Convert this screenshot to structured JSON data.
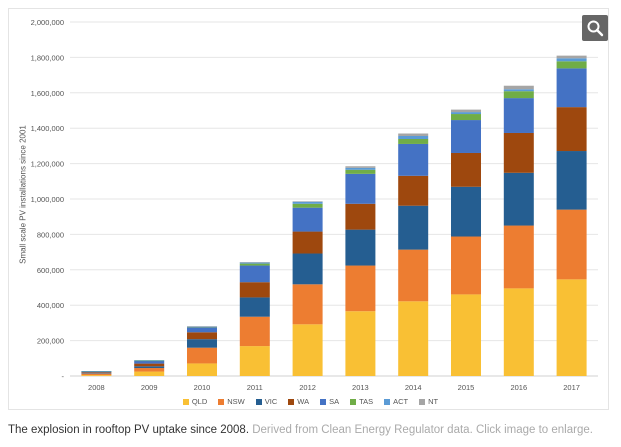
{
  "chart_data": {
    "type": "bar",
    "stacked": true,
    "title": "",
    "xlabel": "",
    "ylabel": "Small scale PV installations since 2001",
    "ylim": [
      0,
      2000000
    ],
    "yticks": [
      "-",
      "200,000",
      "400,000",
      "600,000",
      "800,000",
      "1,000,000",
      "1,200,000",
      "1,400,000",
      "1,600,000",
      "1,800,000",
      "2,000,000"
    ],
    "categories": [
      "2008",
      "2009",
      "2010",
      "2011",
      "2012",
      "2013",
      "2014",
      "2015",
      "2016",
      "2017"
    ],
    "series": [
      {
        "name": "QLD",
        "color": "#F9C034",
        "values": [
          5000,
          25000,
          71000,
          169000,
          292000,
          366000,
          422000,
          461000,
          495000,
          546000
        ]
      },
      {
        "name": "NSW",
        "color": "#ED7D31",
        "values": [
          8000,
          20000,
          89000,
          166000,
          226000,
          258000,
          292000,
          327000,
          355000,
          394000
        ]
      },
      {
        "name": "VIC",
        "color": "#255E91",
        "values": [
          3000,
          10000,
          48000,
          109000,
          174000,
          203000,
          248000,
          281000,
          298000,
          331000
        ]
      },
      {
        "name": "WA",
        "color": "#9E480E",
        "values": [
          5000,
          15000,
          39000,
          86000,
          124000,
          146000,
          169000,
          191000,
          225000,
          248000
        ]
      },
      {
        "name": "SA",
        "color": "#4472C4",
        "values": [
          5000,
          15000,
          28000,
          94000,
          135000,
          169000,
          180000,
          186000,
          197000,
          219000
        ]
      },
      {
        "name": "TAS",
        "color": "#70AD47",
        "values": [
          1000,
          2000,
          3000,
          11000,
          22000,
          23000,
          28000,
          34000,
          39000,
          40000
        ]
      },
      {
        "name": "ACT",
        "color": "#5B9BD5",
        "values": [
          1000,
          3000,
          2000,
          7000,
          12000,
          11000,
          17000,
          11000,
          11000,
          17000
        ]
      },
      {
        "name": "NT",
        "color": "#A5A5A5",
        "values": [
          0,
          0,
          1000,
          1000,
          2000,
          9000,
          14000,
          14000,
          20000,
          15000
        ]
      }
    ],
    "legend_position": "bottom",
    "grid": true
  },
  "zoom_button": {
    "icon": "magnifier-icon"
  },
  "caption": {
    "main": "The explosion in rooftop PV uptake since 2008.",
    "sub": "Derived from Clean Energy Regulator data. Click image to enlarge."
  }
}
